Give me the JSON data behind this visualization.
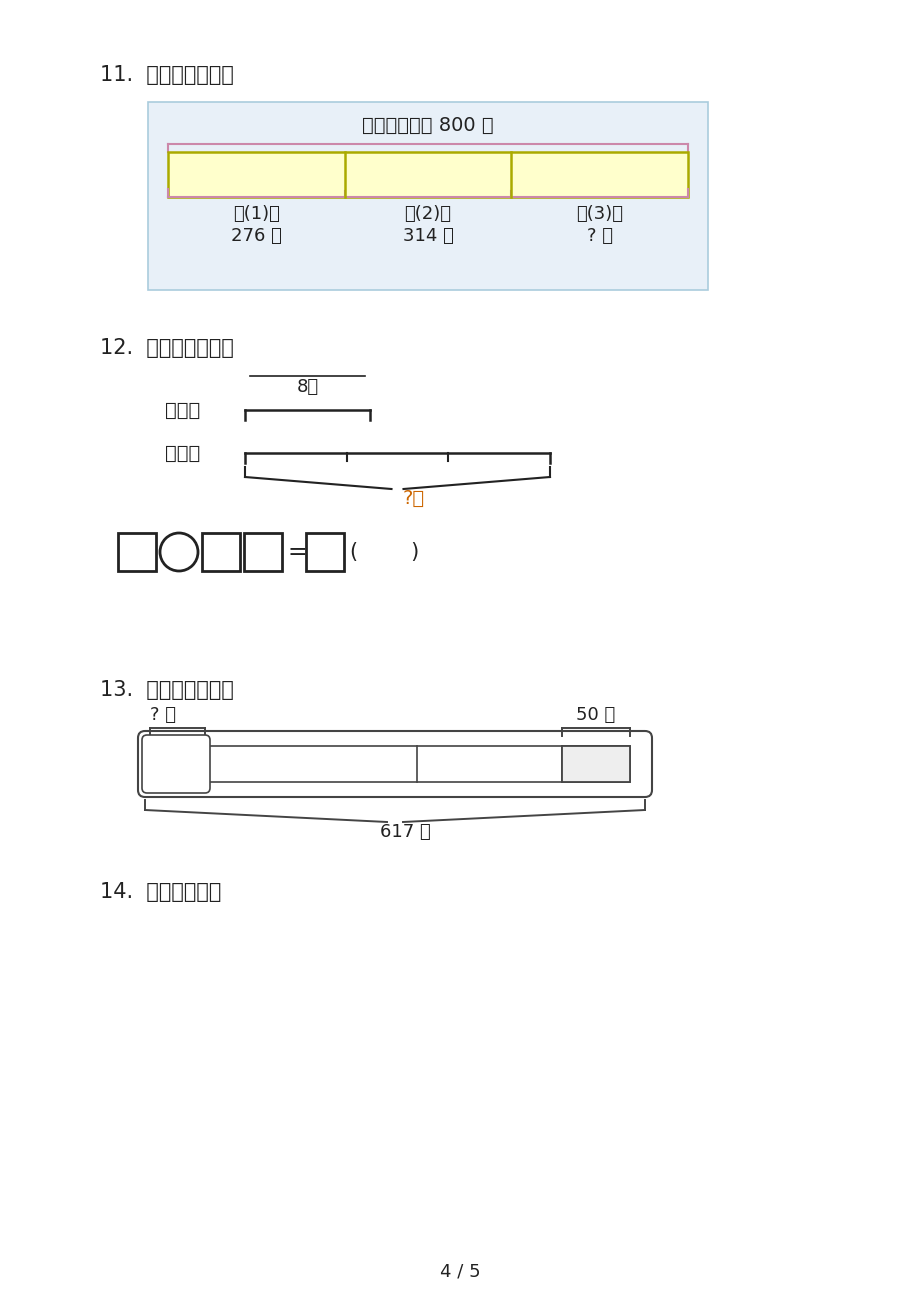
{
  "page_bg": "#ffffff",
  "title11": "11.  看图列式计算。",
  "title12": "12.  看图列式计算。",
  "title13": "13.  看图列式计算。",
  "title14": "14.  看图列算式。",
  "page_num": "4 / 5",
  "q11_title": "三年级共捐书 800 本",
  "q11_class1": "三(1)班",
  "q11_val1": "276 本",
  "q11_class2": "三(2)班",
  "q11_val2": "314 本",
  "q11_class3": "三(3)班",
  "q11_val3": "? 本",
  "q12_label_boy": "男生：",
  "q12_label_girl": "女生：",
  "q12_above": "8人",
  "q12_below": "?人",
  "q13_label_left": "? 个",
  "q13_label_right": "50 个",
  "q13_label_bottom": "617 个",
  "yellow_fill": "#ffffcc",
  "pink_border": "#cc88aa",
  "blue_border": "#aaccdd",
  "blue_fill": "#e8f0f8",
  "dark_text": "#222222",
  "orange_text": "#cc6600"
}
